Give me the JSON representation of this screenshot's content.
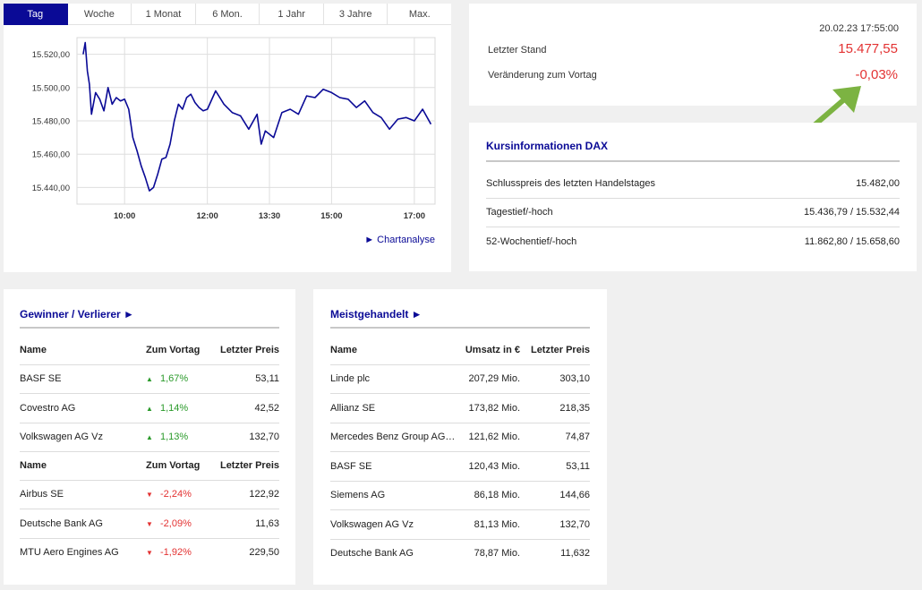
{
  "tabs": [
    "Tag",
    "Woche",
    "1 Monat",
    "6 Mon.",
    "1 Jahr",
    "3 Jahre",
    "Max."
  ],
  "active_tab": 0,
  "chart_link": "► Chartanalyse",
  "quote": {
    "timestamp": "20.02.23 17:55:00",
    "last_label": "Letzter Stand",
    "last_value": "15.477,55",
    "change_label": "Veränderung zum Vortag",
    "change_value": "-0,03%"
  },
  "info": {
    "title": "Kursinformationen DAX",
    "rows": [
      {
        "label": "Schlusspreis des letzten Handelstages",
        "value": "15.482,00"
      },
      {
        "label": "Tagestief/-hoch",
        "value": "15.436,79 / 15.532,44"
      },
      {
        "label": "52-Wochentief/-hoch",
        "value": "11.862,80 / 15.658,60"
      }
    ]
  },
  "gainers_losers": {
    "title": "Gewinner / Verlierer ►",
    "headers": [
      "Name",
      "Zum Vortag",
      "Letzter Preis"
    ],
    "gainers": [
      {
        "name": "BASF SE",
        "change": "1,67%",
        "price": "53,11"
      },
      {
        "name": "Covestro AG",
        "change": "1,14%",
        "price": "42,52"
      },
      {
        "name": "Volkswagen AG Vz",
        "change": "1,13%",
        "price": "132,70"
      }
    ],
    "losers": [
      {
        "name": "Airbus SE",
        "change": "-2,24%",
        "price": "122,92"
      },
      {
        "name": "Deutsche Bank AG",
        "change": "-2,09%",
        "price": "11,63"
      },
      {
        "name": "MTU Aero Engines AG",
        "change": "-1,92%",
        "price": "229,50"
      }
    ],
    "up_glyph": "▲",
    "down_glyph": "▼"
  },
  "most_traded": {
    "title": "Meistgehandelt ►",
    "headers": [
      "Name",
      "Umsatz in €",
      "Letzter Preis"
    ],
    "rows": [
      {
        "name": "Linde plc",
        "turnover": "207,29 Mio.",
        "price": "303,10"
      },
      {
        "name": "Allianz SE",
        "turnover": "173,82 Mio.",
        "price": "218,35"
      },
      {
        "name": "Mercedes Benz Group AG…",
        "turnover": "121,62 Mio.",
        "price": "74,87"
      },
      {
        "name": "BASF SE",
        "turnover": "120,43 Mio.",
        "price": "53,11"
      },
      {
        "name": "Siemens AG",
        "turnover": "86,18 Mio.",
        "price": "144,66"
      },
      {
        "name": "Volkswagen AG Vz",
        "turnover": "81,13 Mio.",
        "price": "132,70"
      },
      {
        "name": "Deutsche Bank AG",
        "turnover": "78,87 Mio.",
        "price": "11,632"
      }
    ]
  },
  "colors": {
    "accent": "#0a0a96",
    "up": "#2a9a2a",
    "down": "#e33232",
    "annotation_arrow": "#7cb342"
  },
  "chart_data": {
    "type": "line",
    "xlim": [
      8.85,
      17.5
    ],
    "ylim": [
      15430,
      15530
    ],
    "x_ticks": [
      10,
      12,
      13.5,
      15,
      17
    ],
    "x_tick_labels": [
      "10:00",
      "12:00",
      "13:30",
      "15:00",
      "17:00"
    ],
    "y_ticks": [
      15440,
      15460,
      15480,
      15500,
      15520
    ],
    "y_tick_labels": [
      "15.440,00",
      "15.460,00",
      "15.480,00",
      "15.500,00",
      "15.520,00"
    ],
    "grid": true,
    "series": [
      {
        "x": [
          9.0,
          9.05,
          9.1,
          9.15,
          9.2,
          9.3,
          9.4,
          9.5,
          9.6,
          9.7,
          9.8,
          9.9,
          10.0,
          10.1,
          10.2,
          10.3,
          10.4,
          10.5,
          10.6,
          10.7,
          10.8,
          10.9,
          11.0,
          11.1,
          11.2,
          11.3,
          11.4,
          11.5,
          11.6,
          11.7,
          11.8,
          11.9,
          12.0,
          12.2,
          12.4,
          12.6,
          12.8,
          13.0,
          13.2,
          13.3,
          13.4,
          13.6,
          13.8,
          14.0,
          14.2,
          14.4,
          14.6,
          14.8,
          15.0,
          15.2,
          15.4,
          15.6,
          15.8,
          16.0,
          16.2,
          16.4,
          16.6,
          16.8,
          17.0,
          17.2,
          17.4
        ],
        "y": [
          15520,
          15527,
          15510,
          15502,
          15484,
          15497,
          15493,
          15486,
          15500,
          15490,
          15494,
          15492,
          15493,
          15487,
          15470,
          15462,
          15453,
          15446,
          15438,
          15440,
          15448,
          15457,
          15458,
          15466,
          15480,
          15490,
          15487,
          15494,
          15496,
          15491,
          15488,
          15486,
          15487,
          15498,
          15490,
          15485,
          15483,
          15475,
          15484,
          15466,
          15474,
          15470,
          15485,
          15487,
          15484,
          15495,
          15494,
          15499,
          15497,
          15494,
          15493,
          15488,
          15492,
          15485,
          15482,
          15475,
          15481,
          15482,
          15480,
          15487,
          15478
        ]
      }
    ]
  }
}
